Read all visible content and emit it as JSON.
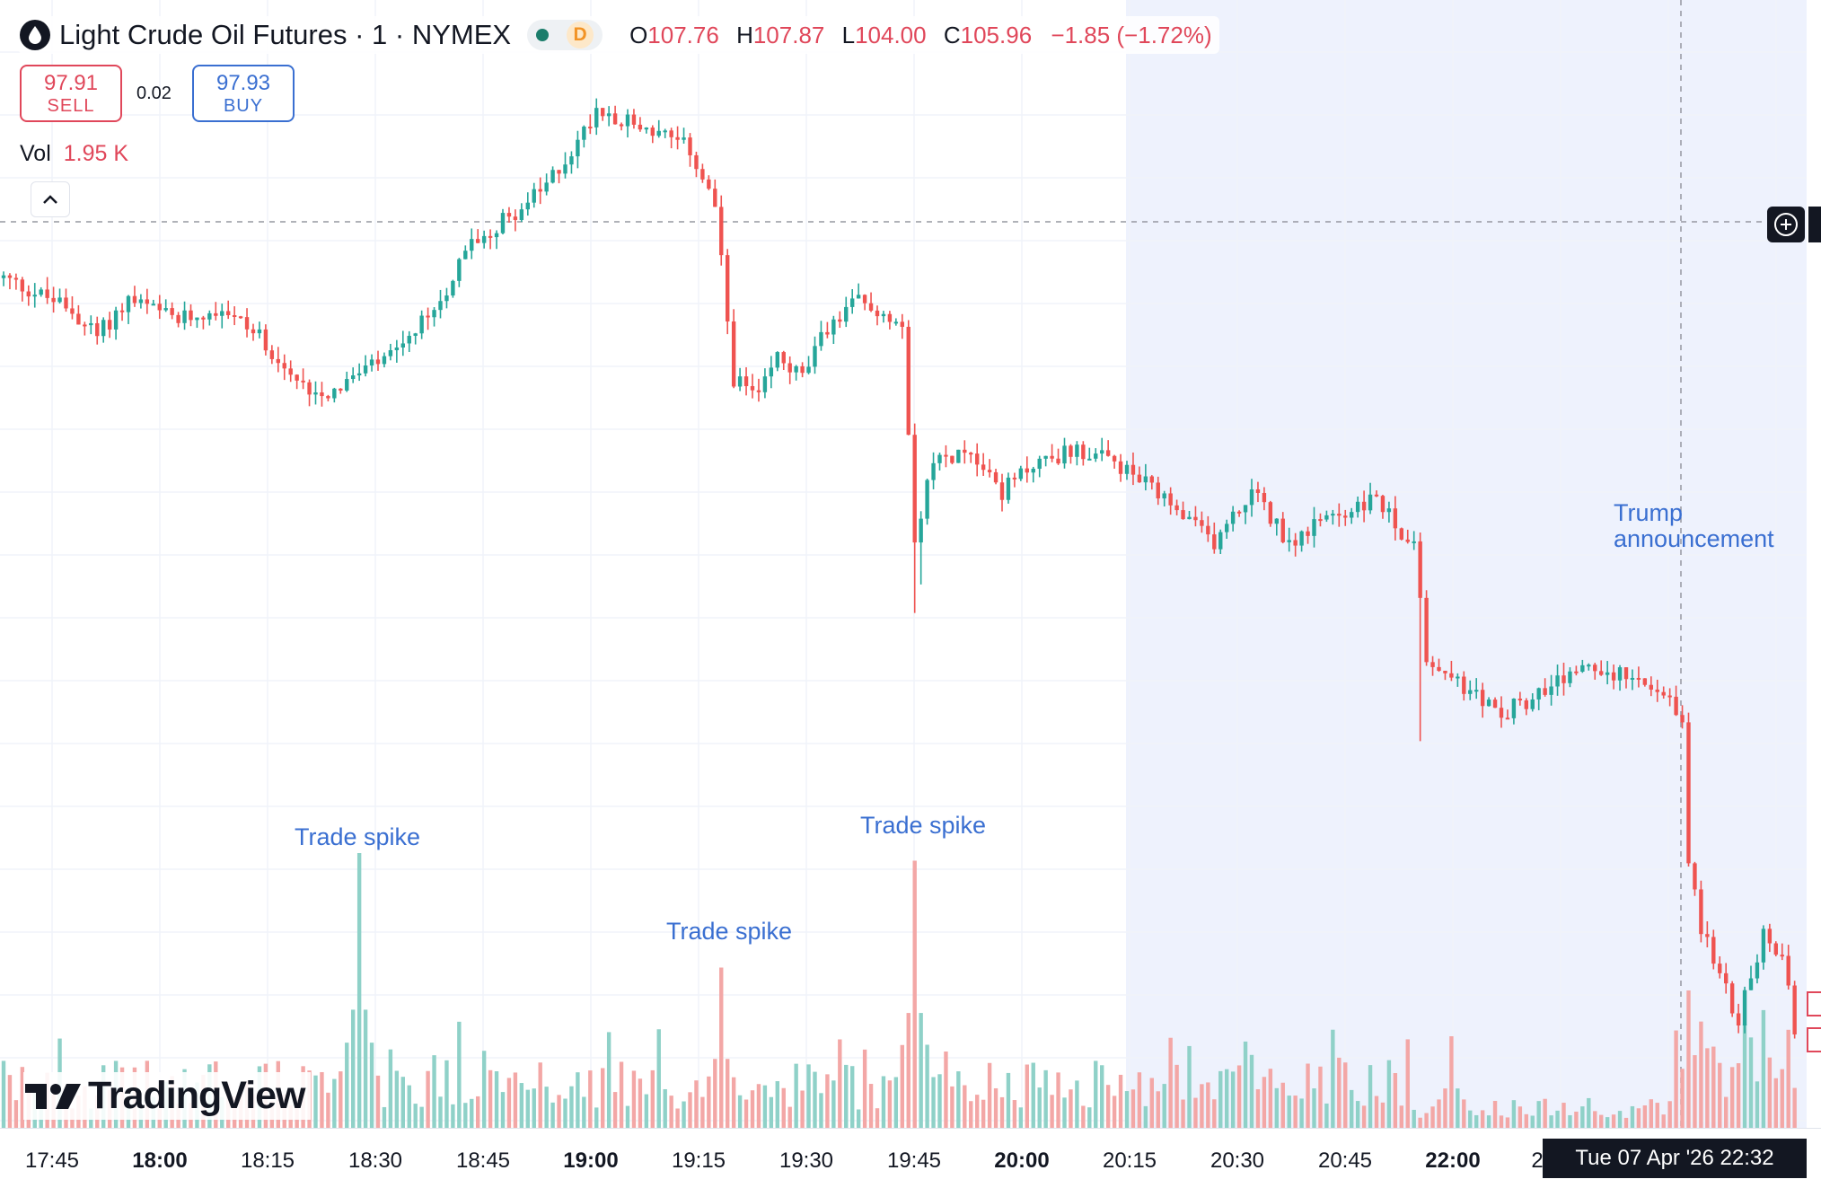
{
  "header": {
    "title": "Light Crude Oil Futures · 1 · NYMEX",
    "status_letter": "D",
    "ohlc": {
      "o_label": "O",
      "o": "107.76",
      "h_label": "H",
      "h": "107.87",
      "l_label": "L",
      "l": "104.00",
      "c_label": "C",
      "c": "105.96",
      "change": "−1.85 (−1.72%)"
    }
  },
  "trade": {
    "sell_price": "97.91",
    "sell_label": "SELL",
    "spread": "0.02",
    "buy_price": "97.93",
    "buy_label": "BUY"
  },
  "volume_legend": {
    "label": "Vol",
    "value": "1.95 K"
  },
  "annotations": [
    "Trade spike",
    "Trade spike",
    "Trade spike",
    "Trump announcement"
  ],
  "logo": "TradingView",
  "crosshair_label": "Tue 07 Apr '26   22:32",
  "colors": {
    "up": "#26a69a",
    "down": "#ef5350",
    "annotation": "#3a6fd1",
    "highlight": "#eef2fd"
  },
  "chart_data": {
    "type": "candlestick",
    "x_ticks": [
      {
        "label": "17:45",
        "bold": false
      },
      {
        "label": "18:00",
        "bold": true
      },
      {
        "label": "18:15",
        "bold": false
      },
      {
        "label": "18:30",
        "bold": false
      },
      {
        "label": "18:45",
        "bold": false
      },
      {
        "label": "19:00",
        "bold": true
      },
      {
        "label": "19:15",
        "bold": false
      },
      {
        "label": "19:30",
        "bold": false
      },
      {
        "label": "19:45",
        "bold": false
      },
      {
        "label": "20:00",
        "bold": true
      },
      {
        "label": "20:15",
        "bold": false
      },
      {
        "label": "20:30",
        "bold": false
      },
      {
        "label": "20:45",
        "bold": false
      },
      {
        "label": "22:00",
        "bold": true
      },
      {
        "label": "2",
        "bold": false
      }
    ],
    "price_path": [
      [
        0,
        107.6
      ],
      [
        10,
        107.2
      ],
      [
        15,
        106.8
      ],
      [
        20,
        107.3
      ],
      [
        28,
        107.0
      ],
      [
        35,
        107.2
      ],
      [
        42,
        106.7
      ],
      [
        47,
        106.1
      ],
      [
        52,
        106.0
      ],
      [
        58,
        106.3
      ],
      [
        64,
        106.6
      ],
      [
        70,
        107.3
      ],
      [
        75,
        108.1
      ],
      [
        80,
        108.4
      ],
      [
        86,
        108.8
      ],
      [
        92,
        109.5
      ],
      [
        95,
        110.0
      ],
      [
        100,
        109.8
      ],
      [
        106,
        109.6
      ],
      [
        110,
        109.4
      ],
      [
        114,
        108.6
      ],
      [
        117,
        106.2
      ],
      [
        121,
        105.9
      ],
      [
        124,
        106.5
      ],
      [
        128,
        106.2
      ],
      [
        132,
        106.9
      ],
      [
        137,
        107.3
      ],
      [
        141,
        107.1
      ],
      [
        144,
        107.0
      ],
      [
        146,
        104.0
      ],
      [
        149,
        105.0
      ],
      [
        155,
        105.2
      ],
      [
        160,
        104.6
      ],
      [
        165,
        105.0
      ],
      [
        172,
        105.2
      ],
      [
        178,
        105.0
      ],
      [
        183,
        104.7
      ],
      [
        188,
        104.3
      ],
      [
        194,
        103.9
      ],
      [
        200,
        104.6
      ],
      [
        206,
        103.9
      ],
      [
        212,
        104.2
      ],
      [
        220,
        104.5
      ],
      [
        226,
        103.8
      ],
      [
        228,
        102.2
      ],
      [
        233,
        101.9
      ],
      [
        240,
        101.5
      ],
      [
        247,
        101.8
      ],
      [
        254,
        102.2
      ],
      [
        262,
        101.9
      ],
      [
        267,
        101.6
      ],
      [
        269,
        101.4
      ],
      [
        270,
        99.4
      ],
      [
        272,
        98.5
      ],
      [
        274,
        98.0
      ],
      [
        278,
        97.2
      ],
      [
        282,
        98.4
      ],
      [
        285,
        98.1
      ],
      [
        287,
        97.0
      ]
    ],
    "breaks": [
      226
    ],
    "wicks": [
      [
        146,
        102.9
      ],
      [
        227,
        101.1
      ],
      [
        147,
        103.3
      ]
    ],
    "volume_spikes": [
      [
        57,
        18
      ],
      [
        115,
        10.5
      ],
      [
        146,
        17.5
      ],
      [
        270,
        9
      ],
      [
        232,
        6
      ]
    ]
  }
}
